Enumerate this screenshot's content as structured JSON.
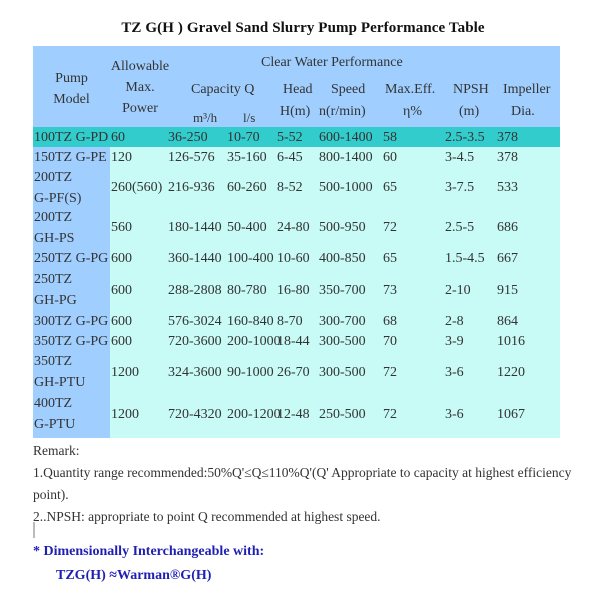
{
  "title": "TZ G(H ) Gravel Sand Slurry Pump Performance Table",
  "header": {
    "pump_model": [
      "Pump",
      "Model"
    ],
    "allowable_power": [
      "Allowable",
      "Max.",
      "Power"
    ],
    "clear_water": "Clear Water Performance",
    "capacity": "Capacity Q",
    "capacity_m3h": "m³/h",
    "capacity_ls": "l/s",
    "head": "Head",
    "head_unit": "H(m)",
    "speed": "Speed",
    "speed_unit": "n(r/min)",
    "max_eff": "Max.Eff.",
    "max_eff_unit": "η%",
    "npsh": "NPSH",
    "npsh_unit": "(m)",
    "impeller": "Impeller",
    "impeller_unit": "Dia."
  },
  "rows": [
    {
      "model": [
        "100TZ G-PD"
      ],
      "power": "60",
      "cap": "36-250",
      "ls": "10-70",
      "head": "5-52",
      "speed": "600-1400",
      "eff": "58",
      "npsh": "2.5-3.5",
      "dia": "378"
    },
    {
      "model": [
        "150TZ G-PE"
      ],
      "power": "120",
      "cap": "126-576",
      "ls": "35-160",
      "head": "6-45",
      "speed": "800-1400",
      "eff": "60",
      "npsh": "3-4.5",
      "dia": "378"
    },
    {
      "model": [
        "200TZ",
        "G-PF(S)"
      ],
      "power": "260(560)",
      "cap": "216-936",
      "ls": "60-260",
      "head": "8-52",
      "speed": "500-1000",
      "eff": "65",
      "npsh": "3-7.5",
      "dia": "533"
    },
    {
      "model": [
        "200TZ",
        "GH-PS"
      ],
      "power": "560",
      "cap": "180-1440",
      "ls": "50-400",
      "head": "24-80",
      "speed": "500-950",
      "eff": "72",
      "npsh": "2.5-5",
      "dia": "686"
    },
    {
      "model": [
        "250TZ G-PG"
      ],
      "power": "600",
      "cap": "360-1440",
      "ls": "100-400",
      "head": "10-60",
      "speed": "400-850",
      "eff": "65",
      "npsh": "1.5-4.5",
      "dia": "667"
    },
    {
      "model": [
        "250TZ",
        "GH-PG"
      ],
      "power": "600",
      "cap": "288-2808",
      "ls": "80-780",
      "head": "16-80",
      "speed": "350-700",
      "eff": "73",
      "npsh": "2-10",
      "dia": "915"
    },
    {
      "model": [
        "300TZ G-PG"
      ],
      "power": "600",
      "cap": "576-3024",
      "ls": "160-840",
      "head": "8-70",
      "speed": "300-700",
      "eff": "68",
      "npsh": "2-8",
      "dia": "864"
    },
    {
      "model": [
        "350TZ G-PG"
      ],
      "power": "600",
      "cap": "720-3600",
      "ls": "200-1000",
      "head": "18-44",
      "speed": "300-500",
      "eff": "70",
      "npsh": "3-9",
      "dia": "1016"
    },
    {
      "model": [
        "350TZ",
        "GH-PTU"
      ],
      "power": "1200",
      "cap": "324-3600",
      "ls": "90-1000",
      "head": "26-70",
      "speed": "300-500",
      "eff": "72",
      "npsh": "3-6",
      "dia": "1220"
    },
    {
      "model": [
        "400TZ",
        "G-PTU"
      ],
      "power": "1200",
      "cap": "720-4320",
      "ls": "200-1200",
      "head": "12-48",
      "speed": "250-500",
      "eff": "72",
      "npsh": "3-6",
      "dia": "1067"
    }
  ],
  "remarks": {
    "label": "Remark:",
    "line1": "1.Quantity range recommended:50%Q'≤Q≤110%Q'(Q' Appropriate to capacity  at highest efficiency point).",
    "line2": "2..NPSH: appropriate to point Q recommended at highest speed."
  },
  "note": {
    "line1": "* Dimensionally Interchangeable with:",
    "line2": "TZG(H) ≈Warman®G(H)"
  },
  "colors": {
    "header_bg": "#a0cfff",
    "body_bg": "#c8fbf6",
    "highlight_row": "#33cccc",
    "note_text": "#1f1fb4"
  }
}
